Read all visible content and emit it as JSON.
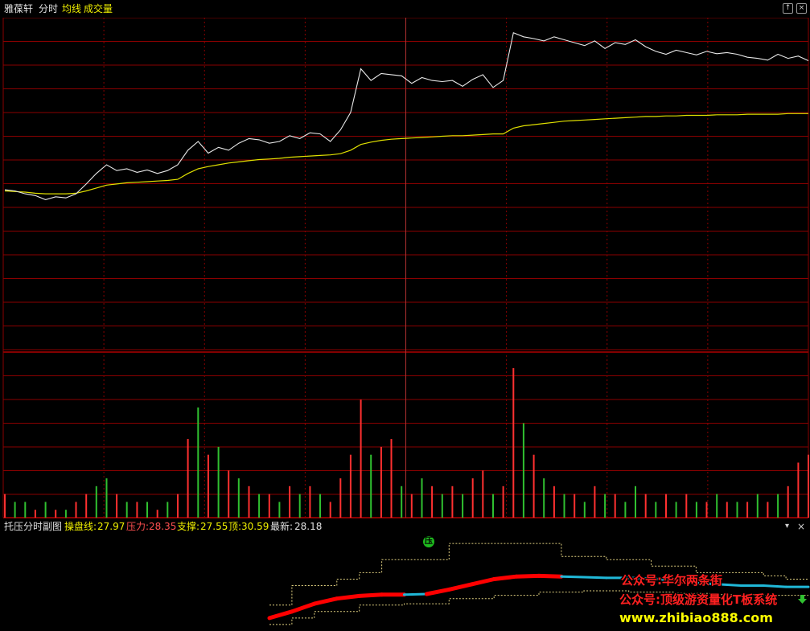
{
  "topbar": {
    "stock_name": "雅葆轩",
    "mode_label": "分时",
    "avg_label": "均线",
    "volume_label": "成交量",
    "avg_color": "#f0f000",
    "volume_color": "#f0f000",
    "buttons": [
      {
        "icon": "expand-up-icon",
        "glyph": "↑"
      },
      {
        "icon": "close-icon",
        "glyph": "×"
      }
    ]
  },
  "sub_panel": {
    "title": "托压分时副图",
    "indicators": [
      {
        "label": "操盘线:",
        "value": "27.97",
        "color": "#f0f000"
      },
      {
        "label": "压力:",
        "value": "28.35",
        "color": "#ff5050"
      },
      {
        "label": "支撑:",
        "value": "27.55",
        "color": "#f0f000"
      },
      {
        "label": "顶:",
        "value": "30.59",
        "color": "#f0f000"
      },
      {
        "label": "最新:",
        "value": "28.18",
        "color": "#e0e0e0"
      }
    ],
    "dropdown_icon": "chevron-down-icon",
    "close_icon": "close-icon",
    "badge_text": "压"
  },
  "watermarks": [
    {
      "text": "公众号:华尔两条街",
      "color": "#ff2020"
    },
    {
      "text": "公众号:顶级游资量化T板系统",
      "color": "#ff2020"
    },
    {
      "text": "www.zhibiao888.com",
      "color": "#ffff00"
    }
  ],
  "colors": {
    "grid": "#8a0000",
    "price_line": "#e8e8e8",
    "avg_line": "#e0e000",
    "vol_up": "#ff3030",
    "vol_down": "#30c030",
    "trend_up": "#ff0000",
    "trend_down": "#20b8d8",
    "band": "#e0d080"
  },
  "chart_data": [
    {
      "type": "line",
      "series": [
        {
          "name": "分时",
          "values": [
            27.62,
            27.6,
            27.55,
            27.52,
            27.45,
            27.5,
            27.48,
            27.55,
            27.72,
            27.9,
            28.05,
            27.95,
            27.98,
            27.92,
            27.96,
            27.9,
            27.95,
            28.05,
            28.3,
            28.45,
            28.25,
            28.35,
            28.3,
            28.42,
            28.5,
            28.48,
            28.42,
            28.45,
            28.55,
            28.5,
            28.6,
            28.58,
            28.45,
            28.65,
            28.95,
            29.7,
            29.5,
            29.62,
            29.6,
            29.58,
            29.45,
            29.55,
            29.5,
            29.48,
            29.5,
            29.4,
            29.52,
            29.6,
            29.38,
            29.5,
            30.32,
            30.25,
            30.22,
            30.18,
            30.25,
            30.2,
            30.15,
            30.1,
            30.18,
            30.05,
            30.15,
            30.12,
            30.2,
            30.08,
            30.0,
            29.95,
            30.02,
            29.98,
            29.94,
            30.0,
            29.96,
            29.98,
            29.95,
            29.9,
            29.88,
            29.85,
            29.95,
            29.88,
            29.92,
            29.84
          ]
        },
        {
          "name": "均线",
          "values": [
            27.6,
            27.59,
            27.58,
            27.56,
            27.55,
            27.55,
            27.55,
            27.56,
            27.6,
            27.65,
            27.7,
            27.72,
            27.74,
            27.75,
            27.76,
            27.77,
            27.78,
            27.8,
            27.9,
            27.98,
            28.02,
            28.05,
            28.08,
            28.1,
            28.12,
            28.14,
            28.15,
            28.16,
            28.18,
            28.19,
            28.2,
            28.21,
            28.22,
            28.24,
            28.3,
            28.4,
            28.44,
            28.47,
            28.49,
            28.5,
            28.51,
            28.52,
            28.53,
            28.54,
            28.55,
            28.55,
            28.56,
            28.57,
            28.58,
            28.58,
            28.68,
            28.72,
            28.74,
            28.76,
            28.78,
            28.8,
            28.81,
            28.82,
            28.83,
            28.84,
            28.85,
            28.86,
            28.87,
            28.88,
            28.88,
            28.89,
            28.89,
            28.9,
            28.9,
            28.9,
            28.91,
            28.91,
            28.91,
            28.92,
            28.92,
            28.92,
            28.92,
            28.93,
            28.93,
            28.93
          ]
        }
      ],
      "y_grid_lines": 8,
      "x_grid_lines": 8
    },
    {
      "type": "bar",
      "title": "成交量",
      "values": [
        3,
        2,
        2,
        1,
        2,
        1,
        1,
        2,
        3,
        4,
        5,
        3,
        2,
        2,
        2,
        1,
        2,
        3,
        10,
        14,
        8,
        9,
        6,
        5,
        4,
        3,
        3,
        2,
        4,
        3,
        4,
        3,
        2,
        5,
        8,
        15,
        8,
        9,
        10,
        4,
        3,
        5,
        4,
        3,
        4,
        3,
        5,
        6,
        3,
        4,
        19,
        12,
        8,
        5,
        4,
        3,
        3,
        2,
        4,
        3,
        3,
        2,
        4,
        3,
        2,
        3,
        2,
        3,
        2,
        2,
        3,
        2,
        2,
        2,
        3,
        2,
        3,
        4,
        7,
        8
      ],
      "up": [
        1,
        0,
        0,
        1,
        0,
        1,
        0,
        1,
        1,
        0,
        0,
        1,
        0,
        1,
        0,
        1,
        0,
        1,
        1,
        0,
        1,
        0,
        1,
        0,
        1,
        0,
        1,
        0,
        1,
        0,
        1,
        0,
        1,
        1,
        1,
        1,
        0,
        1,
        1,
        0,
        1,
        0,
        1,
        0,
        1,
        0,
        1,
        1,
        0,
        1,
        1,
        0,
        1,
        0,
        1,
        0,
        1,
        0,
        1,
        0,
        1,
        0,
        0,
        1,
        0,
        1,
        0,
        1,
        0,
        1,
        0,
        1,
        0,
        1,
        0,
        1,
        0,
        1,
        1,
        1
      ]
    },
    {
      "type": "area",
      "title": "托压分时副图",
      "trend": [
        27.2,
        27.3,
        27.42,
        27.5,
        27.54,
        27.56,
        27.56,
        27.57,
        27.64,
        27.72,
        27.8,
        27.84,
        27.85,
        27.84,
        27.83,
        27.82,
        27.82,
        27.81,
        27.78,
        27.74,
        27.72,
        27.7,
        27.7,
        27.68,
        27.68
      ],
      "trend_up": [
        1,
        1,
        1,
        1,
        1,
        1,
        0,
        1,
        1,
        1,
        1,
        1,
        1,
        0,
        0,
        0,
        0,
        0,
        1,
        0,
        0,
        0,
        0,
        0,
        0
      ],
      "upper": [
        27.4,
        27.7,
        27.7,
        27.8,
        27.9,
        28.1,
        28.1,
        28.1,
        28.35,
        28.35,
        28.35,
        28.35,
        28.35,
        28.15,
        28.15,
        28.1,
        28.1,
        28.0,
        28.0,
        27.9,
        27.9,
        27.9,
        27.85,
        27.8,
        27.8
      ],
      "lower": [
        27.1,
        27.2,
        27.3,
        27.3,
        27.4,
        27.4,
        27.42,
        27.42,
        27.5,
        27.5,
        27.55,
        27.55,
        27.6,
        27.6,
        27.62,
        27.62,
        27.6,
        27.6,
        27.58,
        27.58,
        27.56,
        27.56,
        27.55,
        27.55,
        27.55
      ]
    }
  ]
}
